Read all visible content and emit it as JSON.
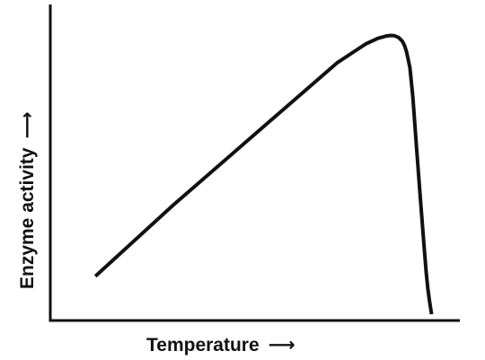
{
  "chart_data": {
    "type": "line",
    "title": "",
    "xlabel": "Temperature",
    "ylabel": "Enzyme activity",
    "axis_arrow_glyph": "⟶",
    "x_ticks": [],
    "y_ticks": [],
    "grid": false,
    "legend": "none",
    "xlim": [
      0,
      100
    ],
    "ylim": [
      0,
      100
    ],
    "colors": {
      "line": "#111111",
      "axis": "#111111",
      "background": "#ffffff"
    },
    "series": [
      {
        "name": "",
        "x": [
          11,
          30,
          50,
          70,
          77,
          80,
          82,
          83,
          84,
          85,
          86,
          86.5,
          87,
          87.8,
          88.5,
          89.4,
          90.4,
          91.3,
          91.8,
          92.2,
          92.6,
          93.1
        ],
        "y": [
          14,
          36.5,
          59,
          81.5,
          87.5,
          89.3,
          90,
          90.2,
          90.1,
          89.6,
          88.3,
          87,
          85,
          80,
          71,
          55,
          38,
          23,
          15,
          10,
          6,
          2
        ]
      }
    ]
  }
}
